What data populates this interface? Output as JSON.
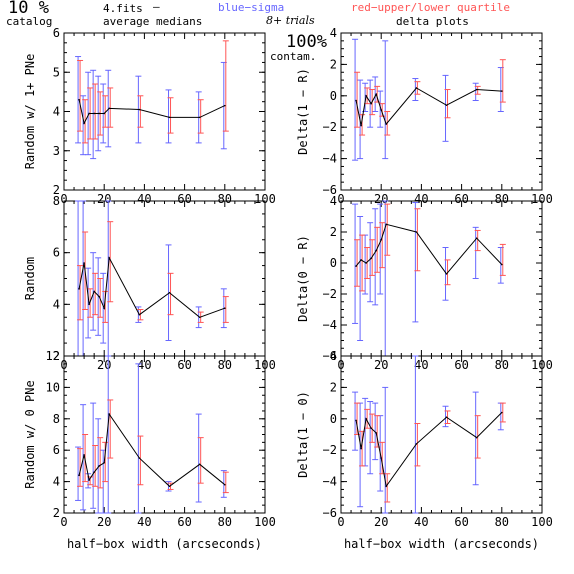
{
  "header": {
    "big_left": "10 %",
    "catalog": "catalog",
    "fits": "4.fits",
    "dash": "–",
    "avg_medians": "average medians",
    "blue_sigma": "blue−sigma",
    "red_quartile": "red−upper/lower quartile",
    "trials": "8+ trials",
    "big_right": "100%",
    "contam": "contam.",
    "delta_plots": "delta plots"
  },
  "colors": {
    "line": "#000000",
    "sigma": "#6666ff",
    "quartile": "#ff5555",
    "axis": "#000000"
  },
  "chart_data": [
    {
      "type": "line",
      "panel": "left-top",
      "xlabel": "",
      "ylabel": "Random w/ 1+ PNe",
      "xlim": [
        0,
        100
      ],
      "ylim": [
        2,
        6
      ],
      "xticks": [
        0,
        20,
        40,
        60,
        80,
        100
      ],
      "yticks": [
        2,
        3,
        4,
        5,
        6
      ],
      "x": [
        7.5,
        10,
        12.5,
        15,
        17.5,
        20,
        22.5,
        37.5,
        52.5,
        67.5,
        80
      ],
      "y": [
        4.3,
        3.7,
        3.95,
        3.95,
        3.95,
        3.95,
        4.08,
        4.05,
        3.85,
        3.85,
        4.15
      ],
      "sigma": [
        [
          3.2,
          5.4
        ],
        [
          2.9,
          4.4
        ],
        [
          2.9,
          5.0
        ],
        [
          2.8,
          5.05
        ],
        [
          3.0,
          4.9
        ],
        [
          3.2,
          4.7
        ],
        [
          3.1,
          5.05
        ],
        [
          3.2,
          4.9
        ],
        [
          3.2,
          4.55
        ],
        [
          3.2,
          4.5
        ],
        [
          3.05,
          5.25
        ]
      ],
      "quartile": [
        [
          3.5,
          5.3
        ],
        [
          3.2,
          4.3
        ],
        [
          3.3,
          4.6
        ],
        [
          3.3,
          4.7
        ],
        [
          3.4,
          4.5
        ],
        [
          3.6,
          4.4
        ],
        [
          3.6,
          4.6
        ],
        [
          3.6,
          4.4
        ],
        [
          3.45,
          4.35
        ],
        [
          3.45,
          4.3
        ],
        [
          3.5,
          5.8
        ]
      ]
    },
    {
      "type": "line",
      "panel": "left-middle",
      "xlabel": "",
      "ylabel": "Random",
      "xlim": [
        0,
        100
      ],
      "ylim": [
        2,
        8
      ],
      "xticks": [
        0,
        20,
        40,
        60,
        80,
        100
      ],
      "yticks": [
        2,
        4,
        6,
        8
      ],
      "x": [
        7.5,
        10,
        12.5,
        15,
        17.5,
        20,
        22.5,
        37.5,
        52.5,
        67.5,
        80
      ],
      "y": [
        4.6,
        5.6,
        4.0,
        4.5,
        4.3,
        3.85,
        5.8,
        3.6,
        4.45,
        3.5,
        3.85
      ],
      "sigma": [
        [
          2.0,
          8.0
        ],
        [
          2.0,
          8.0
        ],
        [
          2.7,
          5.4
        ],
        [
          3.0,
          6.0
        ],
        [
          2.8,
          5.8
        ],
        [
          2.5,
          5.2
        ],
        [
          2.0,
          8.0
        ],
        [
          3.3,
          3.9
        ],
        [
          2.6,
          6.3
        ],
        [
          3.1,
          3.9
        ],
        [
          3.1,
          4.6
        ]
      ],
      "quartile": [
        [
          3.4,
          5.5
        ],
        [
          3.8,
          6.8
        ],
        [
          3.5,
          4.6
        ],
        [
          3.6,
          5.2
        ],
        [
          3.5,
          5.0
        ],
        [
          3.3,
          4.5
        ],
        [
          4.1,
          7.2
        ],
        [
          3.4,
          3.8
        ],
        [
          3.6,
          5.2
        ],
        [
          3.3,
          3.7
        ],
        [
          3.3,
          4.3
        ]
      ]
    },
    {
      "type": "line",
      "panel": "left-bottom",
      "xlabel": "half−box width (arcseconds)",
      "ylabel": "Random w/ 0 PNe",
      "xlim": [
        0,
        100
      ],
      "ylim": [
        2,
        12
      ],
      "xticks": [
        0,
        20,
        40,
        60,
        80,
        100
      ],
      "yticks": [
        2,
        4,
        6,
        8,
        10,
        12
      ],
      "x": [
        7.5,
        10,
        12.5,
        15,
        17.5,
        20,
        22.5,
        37.5,
        52.5,
        67.5,
        80
      ],
      "y": [
        4.4,
        5.7,
        4.1,
        4.6,
        5.0,
        5.2,
        8.3,
        5.5,
        3.7,
        5.1,
        3.8
      ],
      "sigma": [
        [
          2.8,
          6.2
        ],
        [
          2.2,
          8.9
        ],
        [
          3.6,
          4.5
        ],
        [
          2.3,
          9.0
        ],
        [
          2.0,
          8.0
        ],
        [
          2.0,
          6.0
        ],
        [
          2.0,
          12.0
        ],
        [
          2.0,
          11.5
        ],
        [
          3.4,
          4.0
        ],
        [
          2.7,
          8.3
        ],
        [
          3.0,
          4.7
        ]
      ],
      "quartile": [
        [
          3.7,
          6.1
        ],
        [
          4.0,
          7.0
        ],
        [
          3.8,
          4.3
        ],
        [
          3.7,
          6.3
        ],
        [
          3.6,
          6.8
        ],
        [
          4.0,
          6.5
        ],
        [
          5.5,
          9.2
        ],
        [
          3.8,
          6.9
        ],
        [
          3.5,
          3.9
        ],
        [
          3.9,
          6.8
        ],
        [
          3.3,
          4.6
        ]
      ]
    },
    {
      "type": "line",
      "panel": "right-top",
      "xlabel": "",
      "ylabel": "Delta(1 − R)",
      "xlim": [
        0,
        100
      ],
      "ylim": [
        -6,
        4
      ],
      "xticks": [
        0,
        20,
        40,
        60,
        80,
        100
      ],
      "yticks": [
        -6,
        -4,
        -2,
        0,
        2,
        4
      ],
      "x": [
        7.5,
        10,
        12.5,
        15,
        17.5,
        20,
        22.5,
        37.5,
        52.5,
        67.5,
        80
      ],
      "y": [
        -0.3,
        -1.9,
        0.0,
        -0.5,
        0.1,
        -0.9,
        -1.8,
        0.5,
        -0.6,
        0.4,
        0.3
      ],
      "sigma": [
        [
          -4.1,
          3.6
        ],
        [
          -4.0,
          1.0
        ],
        [
          -1.0,
          0.8
        ],
        [
          -2.0,
          1.0
        ],
        [
          -1.0,
          1.2
        ],
        [
          -2.0,
          0.3
        ],
        [
          -4.0,
          3.5
        ],
        [
          -0.3,
          1.1
        ],
        [
          -2.9,
          1.3
        ],
        [
          -0.3,
          0.8
        ],
        [
          -1.0,
          1.8
        ]
      ],
      "quartile": [
        [
          -2.0,
          1.5
        ],
        [
          -2.5,
          -1.2
        ],
        [
          -0.5,
          0.5
        ],
        [
          -1.2,
          0.4
        ],
        [
          -0.4,
          0.6
        ],
        [
          -1.3,
          -0.5
        ],
        [
          -2.5,
          -1.0
        ],
        [
          0.1,
          0.9
        ],
        [
          -1.4,
          0.4
        ],
        [
          0.1,
          0.6
        ],
        [
          -0.4,
          2.3
        ]
      ]
    },
    {
      "type": "line",
      "panel": "right-middle",
      "xlabel": "",
      "ylabel": "Delta(0 − R)",
      "xlim": [
        0,
        100
      ],
      "ylim": [
        -6,
        4
      ],
      "xticks": [
        0,
        20,
        40,
        60,
        80,
        100
      ],
      "yticks": [
        -6,
        -4,
        -2,
        0,
        2,
        4
      ],
      "x": [
        7.5,
        10,
        12.5,
        15,
        17.5,
        20,
        22.5,
        37.5,
        52.5,
        67.5,
        80
      ],
      "y": [
        -0.2,
        0.2,
        0.0,
        0.3,
        0.8,
        1.5,
        2.5,
        2.0,
        -0.7,
        1.6,
        -0.1
      ],
      "sigma": [
        [
          -3.9,
          3.8
        ],
        [
          -5.0,
          3.0
        ],
        [
          -2.0,
          1.8
        ],
        [
          -2.5,
          2.6
        ],
        [
          -2.7,
          3.5
        ],
        [
          -2.0,
          3.8
        ],
        [
          -6.0,
          4.0
        ],
        [
          -3.8,
          3.9
        ],
        [
          -2.4,
          1.0
        ],
        [
          -1.0,
          2.3
        ],
        [
          -1.3,
          1.0
        ]
      ],
      "quartile": [
        [
          -1.5,
          1.5
        ],
        [
          -1.8,
          1.8
        ],
        [
          -1.0,
          1.0
        ],
        [
          -0.8,
          1.5
        ],
        [
          -0.6,
          2.3
        ],
        [
          -0.3,
          2.6
        ],
        [
          0.5,
          3.8
        ],
        [
          -0.5,
          3.5
        ],
        [
          -1.4,
          0.2
        ],
        [
          0.8,
          2.1
        ],
        [
          -0.8,
          1.2
        ]
      ]
    },
    {
      "type": "line",
      "panel": "right-bottom",
      "xlabel": "half−box width (arcseconds)",
      "ylabel": "Delta(1 − 0)",
      "xlim": [
        0,
        100
      ],
      "ylim": [
        -6,
        4
      ],
      "xticks": [
        0,
        20,
        40,
        60,
        80,
        100
      ],
      "yticks": [
        -6,
        -4,
        -2,
        0,
        2,
        4
      ],
      "x": [
        7.5,
        10,
        12.5,
        15,
        17.5,
        20,
        22.5,
        37.5,
        52.5,
        67.5,
        80
      ],
      "y": [
        -0.1,
        -1.9,
        0.0,
        -0.6,
        -0.9,
        -2.5,
        -4.3,
        -1.6,
        0.1,
        -1.2,
        0.4
      ],
      "sigma": [
        [
          -2.0,
          1.7
        ],
        [
          -5.6,
          1.0
        ],
        [
          -3.0,
          1.3
        ],
        [
          -3.5,
          1.1
        ],
        [
          -2.6,
          1.0
        ],
        [
          -4.6,
          0.2
        ],
        [
          -6.0,
          2.0
        ],
        [
          -6.0,
          4.0
        ],
        [
          -0.5,
          0.8
        ],
        [
          -4.2,
          1.7
        ],
        [
          -0.7,
          1.0
        ]
      ],
      "quartile": [
        [
          -1.0,
          1.0
        ],
        [
          -3.0,
          -0.8
        ],
        [
          -0.6,
          0.6
        ],
        [
          -1.5,
          0.3
        ],
        [
          -1.8,
          0.2
        ],
        [
          -3.5,
          -1.5
        ],
        [
          -5.3,
          -3.5
        ],
        [
          -3.0,
          -0.3
        ],
        [
          -0.3,
          0.5
        ],
        [
          -2.5,
          0.2
        ],
        [
          -0.2,
          1.0
        ]
      ]
    }
  ]
}
